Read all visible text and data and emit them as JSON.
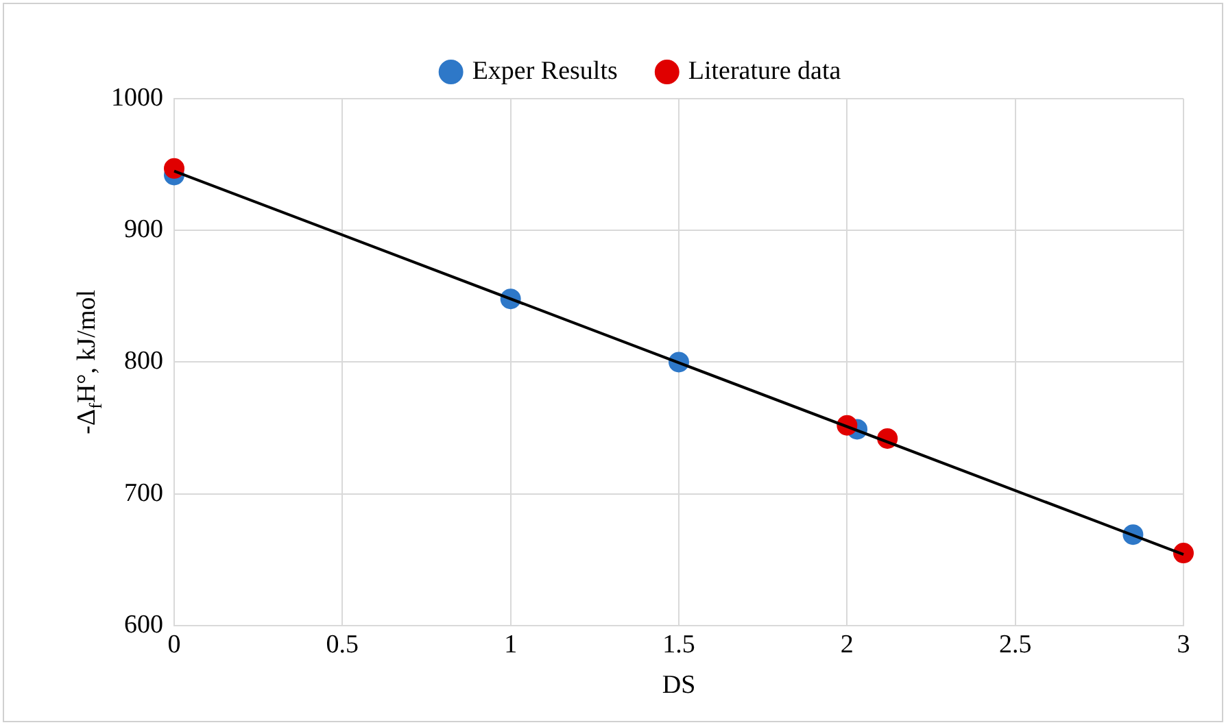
{
  "chart_data": {
    "type": "scatter",
    "xlabel": "DS",
    "ylabel": "-Δ$_{f}$H°, kJ/mol",
    "xlim": [
      0,
      3
    ],
    "xticks": [
      0,
      0.5,
      1,
      1.5,
      2,
      2.5,
      3
    ],
    "ylim": [
      600,
      1000
    ],
    "yticks": [
      600,
      700,
      800,
      900,
      1000
    ],
    "grid": true,
    "legend": "top",
    "marker": "circle",
    "series": [
      {
        "name": "Exper Results",
        "type": "scatter",
        "color": "#2e78c8",
        "x": [
          0,
          1,
          1.5,
          2.03,
          2.85
        ],
        "values": [
          942,
          848,
          800,
          749,
          669
        ]
      },
      {
        "name": "Literature data",
        "type": "scatter",
        "color": "#e00000",
        "x": [
          0,
          2,
          2.12,
          3
        ],
        "values": [
          947,
          752,
          742,
          655
        ]
      },
      {
        "type": "line",
        "color": "#000000",
        "x": [
          0,
          3
        ],
        "values": [
          945,
          654
        ],
        "line_style": "solid",
        "marker": "none"
      }
    ]
  }
}
